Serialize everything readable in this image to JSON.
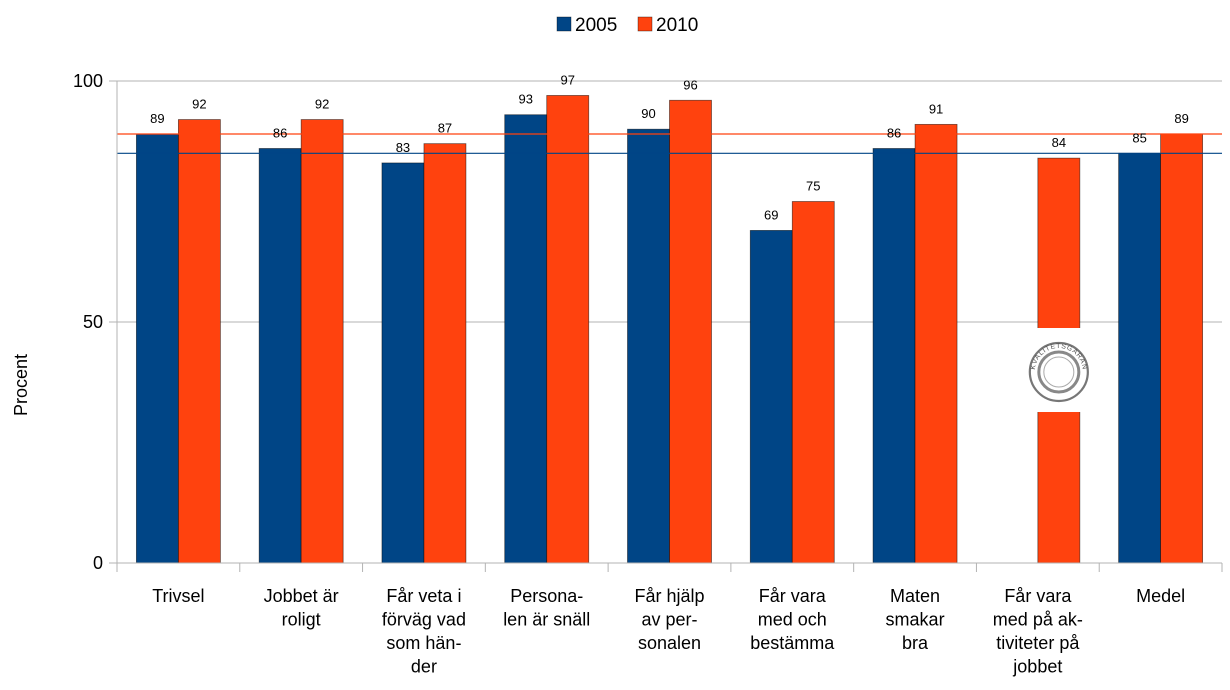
{
  "chart_data": {
    "type": "bar",
    "ylabel": "Procent",
    "ylim": [
      0,
      100
    ],
    "yticks": [
      0,
      50,
      100
    ],
    "grid": true,
    "legend_position": "top-center",
    "categories": [
      [
        "Trivsel"
      ],
      [
        "Jobbet är",
        "roligt"
      ],
      [
        "Får veta i",
        "förväg vad",
        "som hän-",
        "der"
      ],
      [
        "Persona-",
        "len är snäll"
      ],
      [
        "Får hjälp",
        "av per-",
        "sonalen"
      ],
      [
        "Får vara",
        "med och",
        "bestämma"
      ],
      [
        "Maten",
        "smakar",
        "bra"
      ],
      [
        "Får vara",
        "med på ak-",
        "tiviteter på",
        "jobbet"
      ],
      [
        "Medel"
      ]
    ],
    "series": [
      {
        "name": "2005",
        "color": "#004586",
        "values": [
          89,
          86,
          83,
          93,
          90,
          69,
          86,
          null,
          85
        ]
      },
      {
        "name": "2010",
        "color": "#ff420e",
        "values": [
          92,
          92,
          87,
          97,
          96,
          75,
          91,
          84,
          89
        ]
      }
    ],
    "reference_lines": [
      {
        "value": 89,
        "color": "#ff420e"
      },
      {
        "value": 85,
        "color": "#004586"
      }
    ],
    "seal_text": "KVALITETSGARANTI"
  }
}
